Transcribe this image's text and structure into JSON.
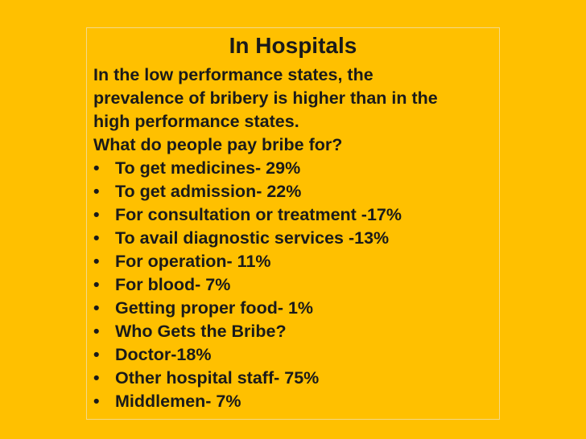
{
  "slide": {
    "title": "In Hospitals",
    "intro_lines": [
      "In the low performance states, the",
      "prevalence of bribery is higher than in the",
      "high performance states.",
      "What do people pay bribe for?"
    ],
    "bullet_symbol": "•",
    "bullets": [
      "To get medicines- 29%",
      "To get admission- 22%",
      "For consultation or treatment -17%",
      "To avail diagnostic services -13%",
      "For operation- 11%",
      "For blood- 7%",
      "Getting proper food- 1%",
      "Who Gets the Bribe?",
      "Doctor-18%",
      "Other hospital staff- 75%",
      "Middlemen- 7%"
    ]
  }
}
